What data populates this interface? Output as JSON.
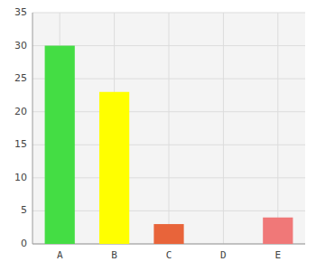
{
  "chart_data": {
    "type": "bar",
    "categories": [
      "A",
      "B",
      "C",
      "D",
      "E"
    ],
    "values": [
      30,
      23,
      3,
      0,
      4
    ],
    "colors": [
      "#44dd44",
      "#ffff00",
      "#e8643a",
      "#e8643a",
      "#f07878"
    ],
    "ylim": [
      0,
      35
    ],
    "yticks": [
      0,
      5,
      10,
      15,
      20,
      25,
      30,
      35
    ],
    "grid": true
  }
}
